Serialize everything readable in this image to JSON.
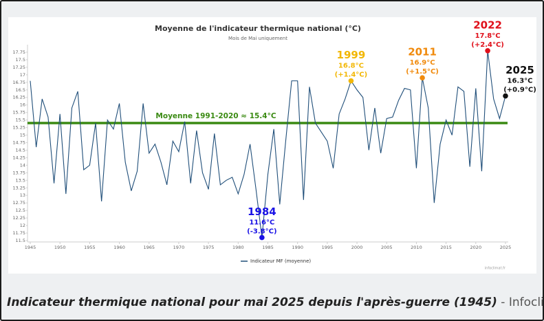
{
  "chart_data": {
    "type": "line",
    "title": "Moyenne de l'indicateur thermique national (°C)",
    "subtitle": "Mois de Mai uniquement",
    "x": [
      1945,
      1946,
      1947,
      1948,
      1949,
      1950,
      1951,
      1952,
      1953,
      1954,
      1955,
      1956,
      1957,
      1958,
      1959,
      1960,
      1961,
      1962,
      1963,
      1964,
      1965,
      1966,
      1967,
      1968,
      1969,
      1970,
      1971,
      1972,
      1973,
      1974,
      1975,
      1976,
      1977,
      1978,
      1979,
      1980,
      1981,
      1982,
      1983,
      1984,
      1985,
      1986,
      1987,
      1988,
      1989,
      1990,
      1991,
      1992,
      1993,
      1994,
      1995,
      1996,
      1997,
      1998,
      1999,
      2000,
      2001,
      2002,
      2003,
      2004,
      2005,
      2006,
      2007,
      2008,
      2009,
      2010,
      2011,
      2012,
      2013,
      2014,
      2015,
      2016,
      2017,
      2018,
      2019,
      2020,
      2021,
      2022,
      2023,
      2024,
      2025
    ],
    "series": [
      {
        "name": "Indicateur MF (moyenne)",
        "color": "#1f4e79",
        "values": [
          16.8,
          14.6,
          16.2,
          15.6,
          13.4,
          15.7,
          13.05,
          15.9,
          16.45,
          13.85,
          14.0,
          15.4,
          12.8,
          15.5,
          15.2,
          16.05,
          14.1,
          13.15,
          13.8,
          16.05,
          14.4,
          14.7,
          14.1,
          13.35,
          14.8,
          14.45,
          15.45,
          13.4,
          15.15,
          13.75,
          13.2,
          15.05,
          13.35,
          13.5,
          13.6,
          13.05,
          13.7,
          14.7,
          13.2,
          11.6,
          13.7,
          15.2,
          12.7,
          14.8,
          16.8,
          16.8,
          12.85,
          16.6,
          15.4,
          15.1,
          14.8,
          13.9,
          15.7,
          16.2,
          16.8,
          16.5,
          16.25,
          14.5,
          15.9,
          14.4,
          15.55,
          15.6,
          16.15,
          16.55,
          16.5,
          13.9,
          16.9,
          15.9,
          12.75,
          14.7,
          15.5,
          15.0,
          16.6,
          16.45,
          13.95,
          16.55,
          13.8,
          17.8,
          16.2,
          15.55,
          16.3
        ]
      }
    ],
    "xlim": [
      1945,
      2025
    ],
    "xticks": [
      1945,
      1950,
      1955,
      1960,
      1965,
      1970,
      1975,
      1980,
      1985,
      1990,
      1995,
      2000,
      2005,
      2010,
      2015,
      2020,
      2025
    ],
    "ylim": [
      11.5,
      18
    ],
    "yticks": [
      11.5,
      11.75,
      12,
      12.25,
      12.5,
      12.75,
      13,
      13.25,
      13.5,
      13.75,
      14,
      14.25,
      14.5,
      14.75,
      15,
      15.25,
      15.5,
      15.75,
      16,
      16.25,
      16.5,
      16.75,
      17,
      17.25,
      17.5,
      17.75
    ],
    "grid": false,
    "legend": "bottom",
    "average": {
      "label": "Moyenne 1991-2020  ≈ 15.4°C",
      "value": 15.4,
      "color": "#3a8a12"
    },
    "highlights": [
      {
        "x": 1984,
        "value": 11.6,
        "value_label": "11.6°C",
        "anomaly_label": "(-3.8°C)",
        "color": "#1a12e6"
      },
      {
        "x": 1999,
        "value": 16.8,
        "value_label": "16.8°C",
        "anomaly_label": "(+1.4°C)",
        "color": "#f2b705"
      },
      {
        "x": 2011,
        "value": 16.9,
        "value_label": "16.9°C",
        "anomaly_label": "(+1.5°C)",
        "color": "#f08a0c"
      },
      {
        "x": 2022,
        "value": 17.8,
        "value_label": "17.8°C",
        "anomaly_label": "(+2.4°C)",
        "color": "#e0101a"
      },
      {
        "x": 2025,
        "value": 16.3,
        "value_label": "16.3°C",
        "anomaly_label": "(+0.9°C)",
        "color": "#111111"
      }
    ],
    "watermark": "infoclimat.fr"
  },
  "caption": {
    "title": "Indicateur thermique national pour mai 2025 depuis l'après-guerre (1945)",
    "separator": " - ",
    "source": "Infoclimat"
  }
}
